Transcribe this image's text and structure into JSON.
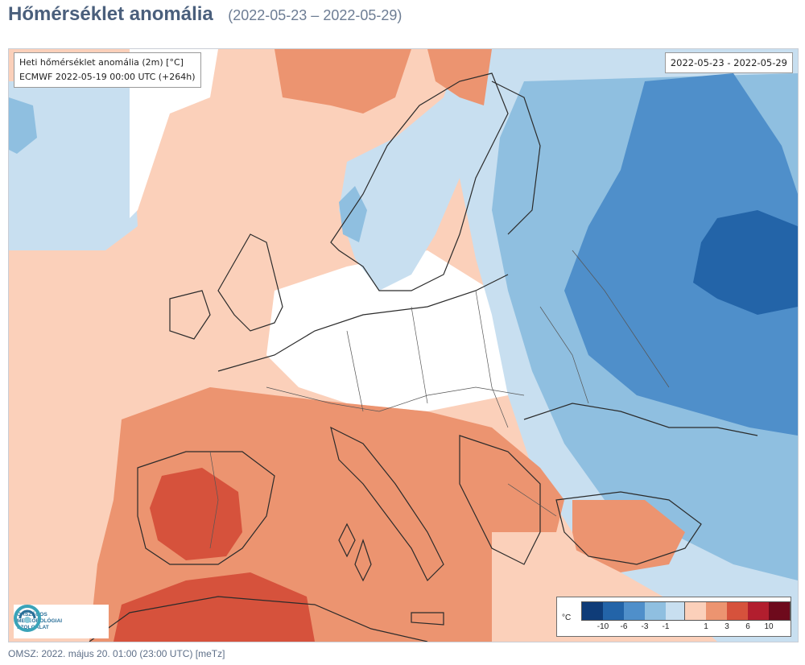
{
  "header": {
    "title": "Hőmérséklet anomália",
    "date_range": "(2022-05-23 – 2022-05-29)"
  },
  "map": {
    "info_line1": "Heti hőmérséklet anomália (2m) [°C]",
    "info_line2": "ECMWF 2022-05-19 00:00 UTC (+264h)",
    "period_label": "2022-05-23 - 2022-05-29",
    "region": "Europe",
    "colors": {
      "blue_1": "#c8dff0",
      "blue_3": "#8fbfe0",
      "blue_6": "#4f8fca",
      "blue_10": "#2364a8",
      "neutral": "#ffffff",
      "red_1": "#fbd0ba",
      "red_3": "#ec9470",
      "red_6": "#d6523c",
      "sea_outline": "#2b2b2b"
    }
  },
  "legend": {
    "unit": "°C",
    "cold_colors": [
      "#0f3c78",
      "#2364a8",
      "#4f8fca",
      "#8fbfe0",
      "#c8dff0"
    ],
    "warm_colors": [
      "#fbd0ba",
      "#ec9470",
      "#d6523c",
      "#b21e2e",
      "#6e0a1c"
    ],
    "cold_ticks": [
      "-10",
      "-6",
      "-3",
      "-1"
    ],
    "warm_ticks": [
      "1",
      "3",
      "6",
      "10"
    ]
  },
  "logo": {
    "line1": "ORSZÁGOS",
    "line2": "METEOROLÓGIAI",
    "line3": "SZOLGÁLAT"
  },
  "footer": {
    "text": "OMSZ: 2022. május 20. 01:00 (23:00 UTC)  [meTz]"
  }
}
